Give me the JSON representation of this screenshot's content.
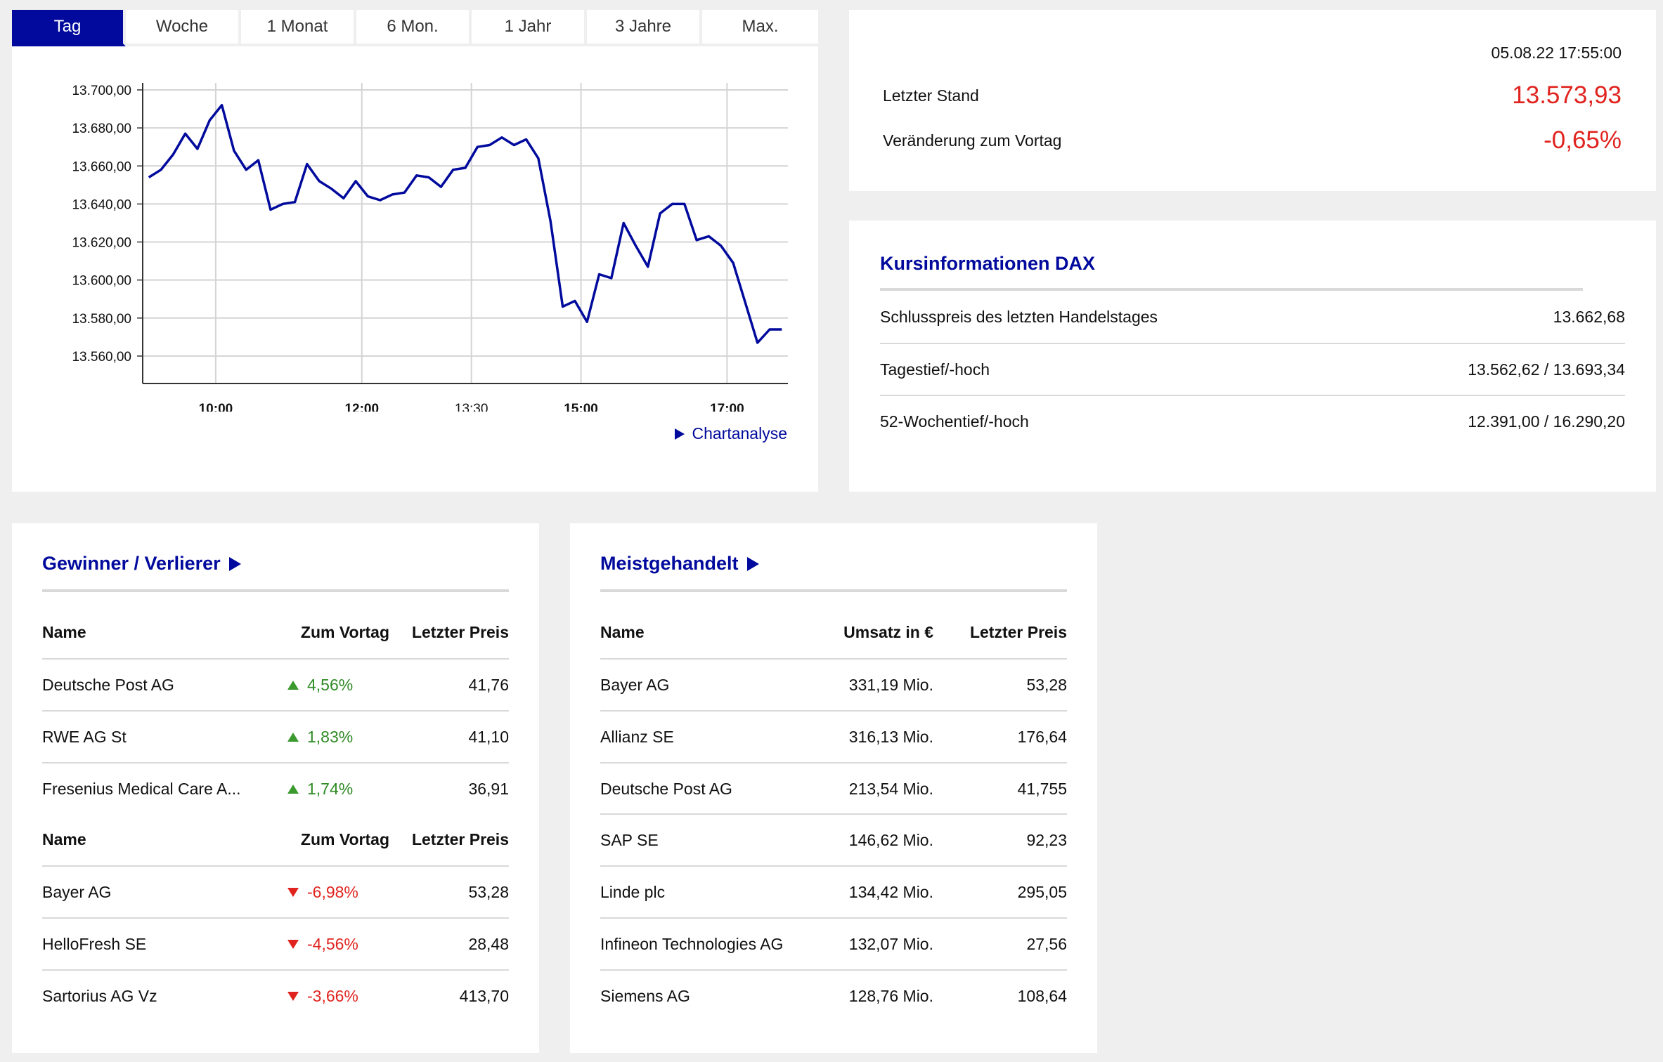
{
  "tabs": [
    "Tag",
    "Woche",
    "1 Monat",
    "6 Mon.",
    "1 Jahr",
    "3 Jahre",
    "Max."
  ],
  "active_tab": "Tag",
  "chart_link": "Chartanalyse",
  "quote": {
    "datetime": "05.08.22 17:55:00",
    "last_label": "Letzter Stand",
    "last_value": "13.573,93",
    "change_label": "Veränderung zum Vortag",
    "change_value": "-0,65%"
  },
  "info": {
    "title": "Kursinformationen DAX",
    "rows": [
      {
        "label": "Schlusspreis des letzten Handelstages",
        "value": "13.662,68"
      },
      {
        "label": "Tagestief/-hoch",
        "value": "13.562,62 / 13.693,34"
      },
      {
        "label": "52-Wochentief/-hoch",
        "value": "12.391,00 / 16.290,20"
      }
    ]
  },
  "gewinner": {
    "title": "Gewinner / Verlierer",
    "headers": {
      "name": "Name",
      "change": "Zum Vortag",
      "price": "Letzter Preis"
    },
    "winners": [
      {
        "name": "Deutsche Post AG",
        "change": "4,56%",
        "price": "41,76"
      },
      {
        "name": "RWE AG St",
        "change": "1,83%",
        "price": "41,10"
      },
      {
        "name": "Fresenius Medical Care A...",
        "change": "1,74%",
        "price": "36,91"
      }
    ],
    "losers": [
      {
        "name": "Bayer AG",
        "change": "-6,98%",
        "price": "53,28"
      },
      {
        "name": "HelloFresh SE",
        "change": "-4,56%",
        "price": "28,48"
      },
      {
        "name": "Sartorius AG Vz",
        "change": "-3,66%",
        "price": "413,70"
      }
    ]
  },
  "meistgehandelt": {
    "title": "Meistgehandelt",
    "headers": {
      "name": "Name",
      "turnover": "Umsatz in €",
      "price": "Letzter Preis"
    },
    "rows": [
      {
        "name": "Bayer AG",
        "turnover": "331,19 Mio.",
        "price": "53,28"
      },
      {
        "name": "Allianz SE",
        "turnover": "316,13 Mio.",
        "price": "176,64"
      },
      {
        "name": "Deutsche Post AG",
        "turnover": "213,54 Mio.",
        "price": "41,755"
      },
      {
        "name": "SAP SE",
        "turnover": "146,62 Mio.",
        "price": "92,23"
      },
      {
        "name": "Linde plc",
        "turnover": "134,42 Mio.",
        "price": "295,05"
      },
      {
        "name": "Infineon Technologies AG",
        "turnover": "132,07 Mio.",
        "price": "27,56"
      },
      {
        "name": "Siemens AG",
        "turnover": "128,76 Mio.",
        "price": "108,64"
      }
    ]
  },
  "colors": {
    "accent": "#010a9c",
    "negative": "#e0231e",
    "positive": "#2e8b24"
  },
  "chart_data": {
    "type": "line",
    "ylim": [
      13550,
      13700
    ],
    "y_ticks": [
      "13.560,00",
      "13.580,00",
      "13.600,00",
      "13.620,00",
      "13.640,00",
      "13.660,00",
      "13.680,00",
      "13.700,00"
    ],
    "y_tick_values": [
      13560,
      13580,
      13600,
      13620,
      13640,
      13660,
      13680,
      13700
    ],
    "x_ticks": [
      {
        "label": "10:00",
        "t": "10:00",
        "bold": true
      },
      {
        "label": "12:00",
        "t": "12:00",
        "bold": true
      },
      {
        "label": "13:30",
        "t": "13:30",
        "bold": false
      },
      {
        "label": "15:00",
        "t": "15:00",
        "bold": true
      },
      {
        "label": "17:00",
        "t": "17:00",
        "bold": true
      }
    ],
    "xlim": [
      "09:00",
      "17:50"
    ],
    "grid": true,
    "series": [
      {
        "color": "#010a9c",
        "points": [
          [
            "09:05",
            13654
          ],
          [
            "09:15",
            13658
          ],
          [
            "09:25",
            13666
          ],
          [
            "09:35",
            13677
          ],
          [
            "09:45",
            13669
          ],
          [
            "09:55",
            13684
          ],
          [
            "10:05",
            13692
          ],
          [
            "10:15",
            13668
          ],
          [
            "10:25",
            13658
          ],
          [
            "10:35",
            13663
          ],
          [
            "10:45",
            13637
          ],
          [
            "10:55",
            13640
          ],
          [
            "11:05",
            13641
          ],
          [
            "11:15",
            13661
          ],
          [
            "11:25",
            13652
          ],
          [
            "11:35",
            13648
          ],
          [
            "11:45",
            13643
          ],
          [
            "11:55",
            13652
          ],
          [
            "12:05",
            13644
          ],
          [
            "12:15",
            13642
          ],
          [
            "12:25",
            13645
          ],
          [
            "12:35",
            13646
          ],
          [
            "12:45",
            13655
          ],
          [
            "12:55",
            13654
          ],
          [
            "13:05",
            13649
          ],
          [
            "13:15",
            13658
          ],
          [
            "13:25",
            13659
          ],
          [
            "13:35",
            13670
          ],
          [
            "13:45",
            13671
          ],
          [
            "13:55",
            13675
          ],
          [
            "14:05",
            13671
          ],
          [
            "14:15",
            13674
          ],
          [
            "14:25",
            13664
          ],
          [
            "14:35",
            13631
          ],
          [
            "14:45",
            13586
          ],
          [
            "14:55",
            13589
          ],
          [
            "15:05",
            13578
          ],
          [
            "15:15",
            13603
          ],
          [
            "15:25",
            13601
          ],
          [
            "15:35",
            13630
          ],
          [
            "15:45",
            13618
          ],
          [
            "15:55",
            13607
          ],
          [
            "16:05",
            13635
          ],
          [
            "16:15",
            13640
          ],
          [
            "16:25",
            13640
          ],
          [
            "16:35",
            13621
          ],
          [
            "16:45",
            13623
          ],
          [
            "16:55",
            13618
          ],
          [
            "17:05",
            13609
          ],
          [
            "17:15",
            13588
          ],
          [
            "17:25",
            13567
          ],
          [
            "17:35",
            13574
          ],
          [
            "17:45",
            13574
          ]
        ]
      }
    ]
  }
}
